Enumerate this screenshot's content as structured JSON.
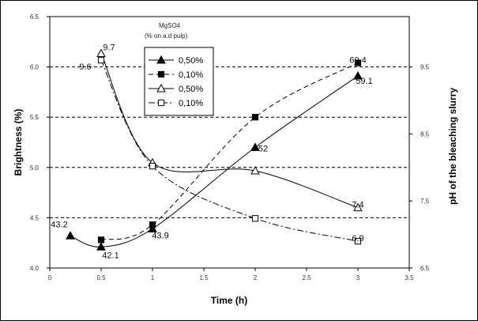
{
  "chart_data": {
    "type": "line",
    "xlabel": "Time  (h)",
    "ylabel": "Brightness (%)",
    "y2label": "pH of the bleaching slurry",
    "xlim": [
      0,
      3.5
    ],
    "ylim": [
      40,
      65
    ],
    "y2lim": [
      6.5,
      10.25
    ],
    "x_ticks": [
      "0",
      "0.5",
      "1",
      "1.5",
      "2",
      "2.5",
      "3",
      "3.5"
    ],
    "y_ticks": [
      "4.0",
      "4.5",
      "5.0",
      "5.5",
      "6.0",
      "6.5"
    ],
    "y2_ticks": [
      "6.5",
      "7.5",
      "8.5",
      "9.5"
    ],
    "grid": "horizontal dashed at 45, 50, 55, 60",
    "legend": {
      "title_line1": "MgSO4",
      "title_line2": "(% on a.d pulp)",
      "placement": "top-center",
      "entries": [
        "0,50%",
        "0,10%",
        "0,50%",
        "0,10%"
      ]
    },
    "series": [
      {
        "axis": "left",
        "marker": "filled-triangle",
        "style": "solid",
        "x": [
          0.2,
          0.5,
          1,
          2,
          3
        ],
        "y": [
          43.2,
          42.1,
          43.9,
          52,
          59.1
        ],
        "labels": [
          "43.2",
          "42.1",
          "43.9",
          "52",
          "59.1"
        ]
      },
      {
        "axis": "left",
        "marker": "filled-square",
        "style": "dashed",
        "x": [
          0.5,
          1,
          2,
          3
        ],
        "y": [
          42.8,
          44.3,
          55,
          60.4
        ],
        "labels": [
          "",
          "",
          "",
          "60.4"
        ]
      },
      {
        "axis": "right",
        "marker": "open-triangle",
        "style": "solid",
        "x": [
          0.5,
          1,
          2,
          3
        ],
        "y": [
          9.7,
          8.07,
          7.95,
          7.4
        ],
        "labels": [
          "9.7",
          "",
          "",
          "7.4"
        ]
      },
      {
        "axis": "right",
        "marker": "open-square",
        "style": "dash-dot",
        "x": [
          0.5,
          1,
          2,
          3
        ],
        "y": [
          9.6,
          8.02,
          7.24,
          6.9
        ],
        "labels": [
          "9.6",
          "",
          "",
          "6.9"
        ]
      }
    ]
  }
}
